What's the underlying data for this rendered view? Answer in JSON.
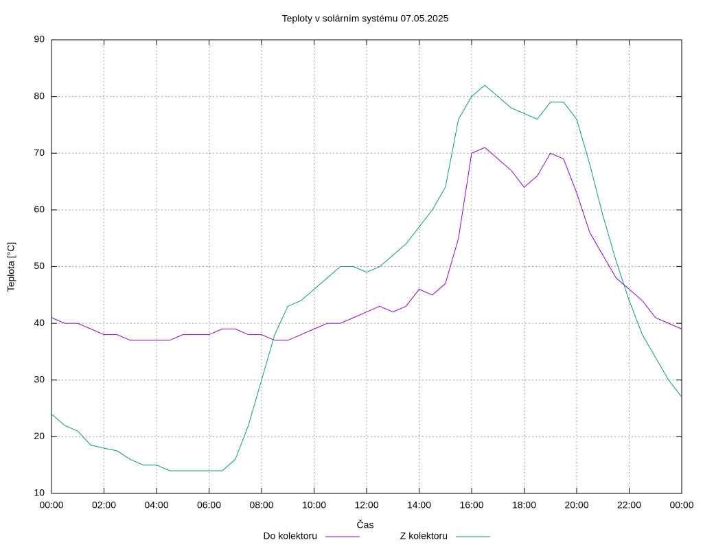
{
  "chart_data": {
    "type": "line",
    "title": "Teploty v solárním systému 07.05.2025",
    "xlabel": "Čas",
    "ylabel": "Teplota [°C]",
    "x": [
      0,
      0.5,
      1,
      1.5,
      2,
      2.5,
      3,
      3.5,
      4,
      4.5,
      5,
      5.5,
      6,
      6.5,
      7,
      7.5,
      8,
      8.5,
      9,
      9.5,
      10,
      10.5,
      11,
      11.5,
      12,
      12.5,
      13,
      13.5,
      14,
      14.5,
      15,
      15.5,
      16,
      16.5,
      17,
      17.5,
      18,
      18.5,
      19,
      19.5,
      20,
      20.5,
      21,
      21.5,
      22,
      22.5,
      23,
      23.5,
      24
    ],
    "series": [
      {
        "name": "Do kolektoru",
        "color": "#9400d3",
        "values": [
          41,
          40,
          40,
          39,
          38,
          38,
          37,
          37,
          37,
          37,
          38,
          38,
          38,
          39,
          39,
          38,
          38,
          37,
          37,
          38,
          39,
          40,
          40,
          41,
          42,
          43,
          42,
          43,
          46,
          45,
          47,
          55,
          70,
          71,
          69,
          67,
          64,
          66,
          70,
          69,
          63,
          56,
          52,
          48,
          46,
          44,
          41,
          40,
          39
        ]
      },
      {
        "name": "Z kolektoru",
        "color": "#009e73",
        "values": [
          24,
          22,
          21,
          18.5,
          18,
          17.5,
          16,
          15,
          15,
          14,
          14,
          14,
          14,
          14,
          16,
          22,
          30,
          38,
          43,
          44,
          46,
          48,
          50,
          50,
          49,
          50,
          52,
          54,
          57,
          60,
          64,
          76,
          80,
          82,
          80,
          78,
          77,
          76,
          79,
          79,
          76,
          68,
          59,
          51,
          44,
          38,
          34,
          30,
          27
        ]
      }
    ],
    "xlim": [
      0,
      24
    ],
    "xticks": [
      {
        "value": 0,
        "label": "00:00"
      },
      {
        "value": 2,
        "label": "02:00"
      },
      {
        "value": 4,
        "label": "04:00"
      },
      {
        "value": 6,
        "label": "06:00"
      },
      {
        "value": 8,
        "label": "08:00"
      },
      {
        "value": 10,
        "label": "10:00"
      },
      {
        "value": 12,
        "label": "12:00"
      },
      {
        "value": 14,
        "label": "14:00"
      },
      {
        "value": 16,
        "label": "16:00"
      },
      {
        "value": 18,
        "label": "18:00"
      },
      {
        "value": 20,
        "label": "20:00"
      },
      {
        "value": 22,
        "label": "22:00"
      },
      {
        "value": 24,
        "label": "00:00"
      }
    ],
    "ylim": [
      10,
      90
    ],
    "yticks": [
      10,
      20,
      30,
      40,
      50,
      60,
      70,
      80,
      90
    ],
    "grid": true,
    "legend": "bottom"
  }
}
